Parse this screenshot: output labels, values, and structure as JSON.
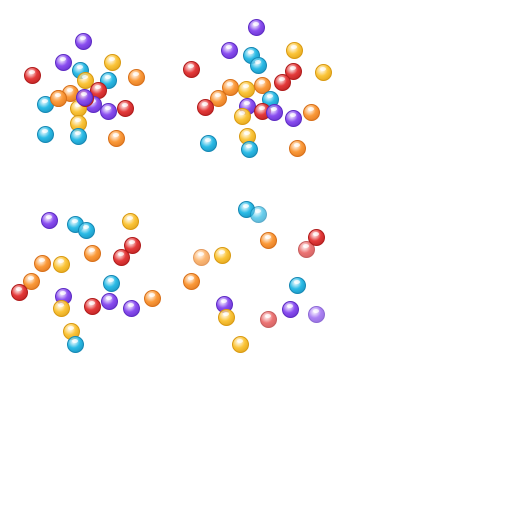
{
  "palette": {
    "red": {
      "fill": "#e43a3a",
      "edge": "#b01c1c"
    },
    "purple": {
      "fill": "#8a4ef0",
      "edge": "#5e2cc4"
    },
    "blue": {
      "fill": "#2bbbe6",
      "edge": "#1688b4"
    },
    "yellow": {
      "fill": "#fbc53a",
      "edge": "#d99a12"
    },
    "orange": {
      "fill": "#fb9a3a",
      "edge": "#d8701a"
    }
  },
  "clusters": [
    {
      "name": "cluster-top-left",
      "balls": [
        "purple",
        "yellow",
        "red",
        "purple",
        "blue",
        "orange",
        "yellow",
        "blue",
        "red",
        "orange",
        "orange",
        "blue",
        "red",
        "purple",
        "purple",
        "yellow",
        "red",
        "purple",
        "orange",
        "blue",
        "yellow",
        "blue",
        "orange"
      ]
    },
    {
      "name": "cluster-top-right",
      "balls": [
        "purple",
        "purple",
        "blue",
        "yellow",
        "blue",
        "red",
        "red",
        "yellow",
        "red",
        "orange",
        "yellow",
        "orange",
        "orange",
        "blue",
        "purple",
        "red",
        "red",
        "purple",
        "yellow",
        "purple",
        "orange",
        "blue",
        "yellow",
        "blue",
        "orange"
      ]
    },
    {
      "name": "cluster-bottom-left",
      "balls": [
        "purple",
        "blue",
        "blue",
        "yellow",
        "red",
        "orange",
        "red",
        "orange",
        "yellow",
        "orange",
        "red",
        "blue",
        "purple",
        "purple",
        "orange",
        "yellow",
        "red",
        "purple",
        "yellow",
        "blue"
      ]
    },
    {
      "name": "cluster-bottom-right",
      "balls": [
        "blue",
        "blue",
        "red",
        "orange",
        "red",
        "orange",
        "yellow",
        "orange",
        "blue",
        "purple",
        "yellow",
        "purple",
        "red",
        "purple",
        "yellow"
      ]
    }
  ]
}
